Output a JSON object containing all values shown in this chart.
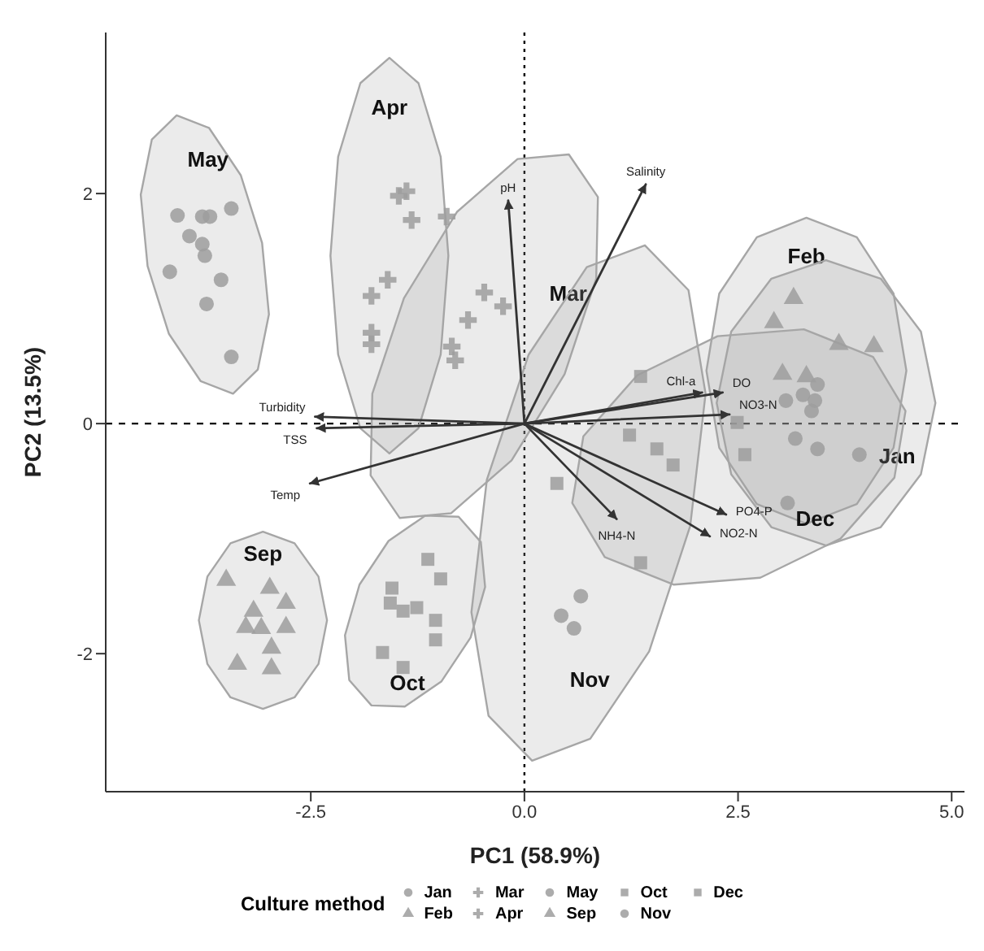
{
  "chart_data": {
    "type": "scatter",
    "xlabel": "PC1 (58.9%)",
    "ylabel": "PC2 (13.5%)",
    "legend_title": "Culture method",
    "legend": "bottom",
    "grid": false,
    "xlim": [
      -4.9,
      5.15
    ],
    "xticks": [
      -2.5,
      {
        "value": 0,
        "label": "0.0"
      },
      2.5,
      {
        "value": 5,
        "label": "5.0"
      }
    ],
    "ylim": [
      -3.2,
      3.4
    ],
    "yticks": [
      -2,
      0,
      2
    ],
    "ref_lines": [
      {
        "axis": "x",
        "value": 0,
        "line_style": "dotted",
        "color": "#000000"
      },
      {
        "axis": "y",
        "value": 0,
        "line_style": "dashed",
        "color": "#000000"
      }
    ],
    "series": [
      {
        "name": "May",
        "type": "area",
        "color": "#a6a6a6",
        "x": [
          -3.69,
          -4.07,
          -4.36,
          -4.49,
          -4.41,
          -4.16,
          -3.79,
          -3.41,
          -3.12,
          -2.99,
          -3.07,
          -3.32,
          -3.69
        ],
        "values": [
          2.57,
          2.68,
          2.47,
          1.99,
          1.37,
          0.78,
          0.37,
          0.26,
          0.47,
          0.95,
          1.57,
          2.16,
          2.57
        ]
      },
      {
        "name": "Apr",
        "type": "area",
        "color": "#a6a6a6",
        "x": [
          -1.58,
          -1.92,
          -2.18,
          -2.27,
          -2.18,
          -1.92,
          -1.58,
          -1.24,
          -0.98,
          -0.89,
          -0.98,
          -1.24,
          -1.58
        ],
        "values": [
          3.18,
          2.96,
          2.32,
          1.46,
          0.6,
          -0.04,
          -0.26,
          -0.04,
          0.6,
          1.46,
          2.32,
          2.96,
          3.18
        ]
      },
      {
        "name": "Mar",
        "type": "area",
        "color": "#a6a6a6",
        "x": [
          0.84,
          0.47,
          -0.15,
          -0.86,
          -1.46,
          -1.8,
          -1.78,
          -1.41,
          -0.79,
          -0.08,
          0.52,
          0.86,
          0.84
        ],
        "values": [
          1.26,
          0.43,
          -0.32,
          -0.78,
          -0.82,
          -0.45,
          0.26,
          1.09,
          1.84,
          2.3,
          2.34,
          1.97,
          1.26
        ]
      },
      {
        "name": "Sep",
        "type": "area",
        "color": "#a6a6a6",
        "x": [
          -3.06,
          -3.44,
          -3.71,
          -3.81,
          -3.71,
          -3.44,
          -3.06,
          -2.69,
          -2.41,
          -2.31,
          -2.41,
          -2.69,
          -3.06
        ],
        "values": [
          -0.94,
          -1.04,
          -1.33,
          -1.71,
          -2.09,
          -2.38,
          -2.48,
          -2.38,
          -2.09,
          -1.71,
          -1.33,
          -1.04,
          -0.94
        ]
      },
      {
        "name": "Oct",
        "type": "area",
        "color": "#a6a6a6",
        "x": [
          -1.4,
          -1.79,
          -2.05,
          -2.1,
          -1.93,
          -1.59,
          -1.16,
          -0.77,
          -0.51,
          -0.46,
          -0.63,
          -0.97,
          -1.4
        ],
        "values": [
          -2.46,
          -2.45,
          -2.23,
          -1.84,
          -1.4,
          -1.02,
          -0.8,
          -0.81,
          -1.03,
          -1.42,
          -1.86,
          -2.24,
          -2.46
        ]
      },
      {
        "name": "Nov",
        "type": "area",
        "color": "#a6a6a6",
        "x": [
          0.77,
          0.09,
          -0.42,
          -0.62,
          -0.44,
          0.05,
          0.73,
          1.41,
          1.92,
          2.12,
          1.94,
          1.46,
          0.77
        ],
        "values": [
          -2.74,
          -2.93,
          -2.54,
          -1.64,
          -0.49,
          0.6,
          1.36,
          1.55,
          1.16,
          0.26,
          -0.89,
          -1.98,
          -2.74
        ]
      },
      {
        "name": "Feb",
        "type": "area",
        "color": "#a6a6a6",
        "x": [
          3.3,
          2.72,
          2.28,
          2.13,
          2.28,
          2.72,
          3.3,
          3.89,
          4.32,
          4.47,
          4.32,
          3.89,
          3.3
        ],
        "values": [
          1.79,
          1.62,
          1.13,
          0.46,
          -0.21,
          -0.7,
          -0.87,
          -0.7,
          -0.21,
          0.46,
          1.13,
          1.62,
          1.79
        ]
      },
      {
        "name": "Jan",
        "type": "area",
        "color": "#a6a6a6",
        "x": [
          4.64,
          4.81,
          4.64,
          4.17,
          3.53,
          2.89,
          2.42,
          2.25,
          2.42,
          2.89,
          3.53,
          4.17,
          4.64
        ],
        "values": [
          -0.44,
          0.18,
          0.8,
          1.26,
          1.42,
          1.26,
          0.8,
          0.18,
          -0.44,
          -0.9,
          -1.06,
          -0.9,
          -0.44
        ]
      },
      {
        "name": "Dec",
        "type": "area",
        "color": "#a6a6a6",
        "x": [
          3.7,
          4.33,
          4.46,
          4.08,
          3.27,
          2.26,
          1.32,
          0.69,
          0.56,
          0.94,
          1.75,
          2.76,
          3.7
        ],
        "values": [
          -1.0,
          -0.47,
          0.11,
          0.58,
          0.82,
          0.76,
          0.42,
          -0.11,
          -0.69,
          -1.16,
          -1.4,
          -1.34,
          -1.0
        ]
      },
      {
        "name": "Jan",
        "color": "#9e9e9e",
        "marker": "circle",
        "x": [
          3.43,
          3.26,
          3.06,
          3.4,
          3.36,
          3.17,
          3.43,
          3.92,
          3.08
        ],
        "values": [
          0.34,
          0.25,
          0.2,
          0.2,
          0.11,
          -0.13,
          -0.22,
          -0.27,
          -0.69
        ]
      },
      {
        "name": "Feb",
        "color": "#9e9e9e",
        "marker": "triangle",
        "x": [
          3.15,
          2.92,
          3.68,
          4.09,
          3.02,
          3.3
        ],
        "values": [
          1.09,
          0.88,
          0.69,
          0.67,
          0.43,
          0.41
        ]
      },
      {
        "name": "Mar",
        "color": "#9e9e9e",
        "marker": "cross",
        "x": [
          -0.47,
          -0.25,
          -0.66,
          -0.85,
          -0.81
        ],
        "values": [
          1.14,
          1.02,
          0.9,
          0.67,
          0.55
        ]
      },
      {
        "name": "Apr",
        "color": "#9e9e9e",
        "marker": "cross",
        "x": [
          -1.47,
          -1.38,
          -1.32,
          -0.91,
          -1.6,
          -1.79,
          -1.79,
          -1.79
        ],
        "values": [
          1.98,
          2.02,
          1.77,
          1.8,
          1.25,
          1.11,
          0.79,
          0.69
        ]
      },
      {
        "name": "May",
        "color": "#9e9e9e",
        "marker": "circle",
        "x": [
          -4.06,
          -3.77,
          -3.68,
          -3.43,
          -3.92,
          -3.77,
          -3.74,
          -4.15,
          -3.55,
          -3.72,
          -3.43
        ],
        "values": [
          1.81,
          1.8,
          1.8,
          1.87,
          1.63,
          1.56,
          1.46,
          1.32,
          1.25,
          1.04,
          0.58
        ]
      },
      {
        "name": "Sep",
        "color": "#9e9e9e",
        "marker": "triangle",
        "x": [
          -3.49,
          -2.98,
          -2.79,
          -3.17,
          -3.26,
          -3.08,
          -2.79,
          -2.96,
          -3.36,
          -2.96
        ],
        "values": [
          -1.36,
          -1.43,
          -1.56,
          -1.63,
          -1.77,
          -1.78,
          -1.77,
          -1.95,
          -2.09,
          -2.13
        ]
      },
      {
        "name": "Oct",
        "color": "#9e9e9e",
        "marker": "square",
        "x": [
          -1.13,
          -0.98,
          -1.55,
          -1.57,
          -1.42,
          -1.26,
          -1.04,
          -1.04,
          -1.66,
          -1.42
        ],
        "values": [
          -1.18,
          -1.35,
          -1.43,
          -1.56,
          -1.63,
          -1.6,
          -1.71,
          -1.88,
          -1.99,
          -2.12
        ]
      },
      {
        "name": "Nov",
        "color": "#9e9e9e",
        "marker": "circle",
        "x": [
          0.66,
          0.43,
          0.58
        ],
        "values": [
          -1.5,
          -1.67,
          -1.78
        ]
      },
      {
        "name": "Dec",
        "color": "#9e9e9e",
        "marker": "square",
        "x": [
          2.49,
          2.58,
          1.36,
          1.23,
          1.55,
          1.74,
          0.38,
          1.36
        ],
        "values": [
          0.01,
          -0.27,
          0.41,
          -0.1,
          -0.22,
          -0.36,
          -0.52,
          -1.21
        ]
      },
      {
        "name": "pH",
        "type": "line",
        "color": "#333333",
        "x": [
          0,
          -0.19
        ],
        "values": [
          0,
          1.94
        ]
      },
      {
        "name": "Salinity",
        "type": "line",
        "color": "#333333",
        "x": [
          0,
          1.42
        ],
        "values": [
          0,
          2.08
        ]
      },
      {
        "name": "Chl-a",
        "type": "line",
        "color": "#333333",
        "x": [
          0,
          2.08
        ],
        "values": [
          0,
          0.27
        ]
      },
      {
        "name": "DO",
        "type": "line",
        "color": "#333333",
        "x": [
          0,
          2.32
        ],
        "values": [
          0,
          0.27
        ]
      },
      {
        "name": "NO3-N",
        "type": "line",
        "color": "#333333",
        "x": [
          0,
          2.4
        ],
        "values": [
          0,
          0.08
        ]
      },
      {
        "name": "PO4-P",
        "type": "line",
        "color": "#333333",
        "x": [
          0,
          2.36
        ],
        "values": [
          0,
          -0.79
        ]
      },
      {
        "name": "NO2-N",
        "type": "line",
        "color": "#333333",
        "x": [
          0,
          2.17
        ],
        "values": [
          0,
          -0.98
        ]
      },
      {
        "name": "NH4-N",
        "type": "line",
        "color": "#333333",
        "x": [
          0,
          1.08
        ],
        "values": [
          0,
          -0.83
        ]
      },
      {
        "name": "Turbidity",
        "type": "line",
        "color": "#333333",
        "x": [
          0,
          -2.45
        ],
        "values": [
          0,
          0.06
        ]
      },
      {
        "name": "TSS",
        "type": "line",
        "color": "#333333",
        "x": [
          0,
          -2.43
        ],
        "values": [
          0,
          -0.04
        ]
      },
      {
        "name": "Temp",
        "type": "line",
        "color": "#333333",
        "x": [
          0,
          -2.51
        ],
        "values": [
          0,
          -0.52
        ]
      }
    ]
  }
}
